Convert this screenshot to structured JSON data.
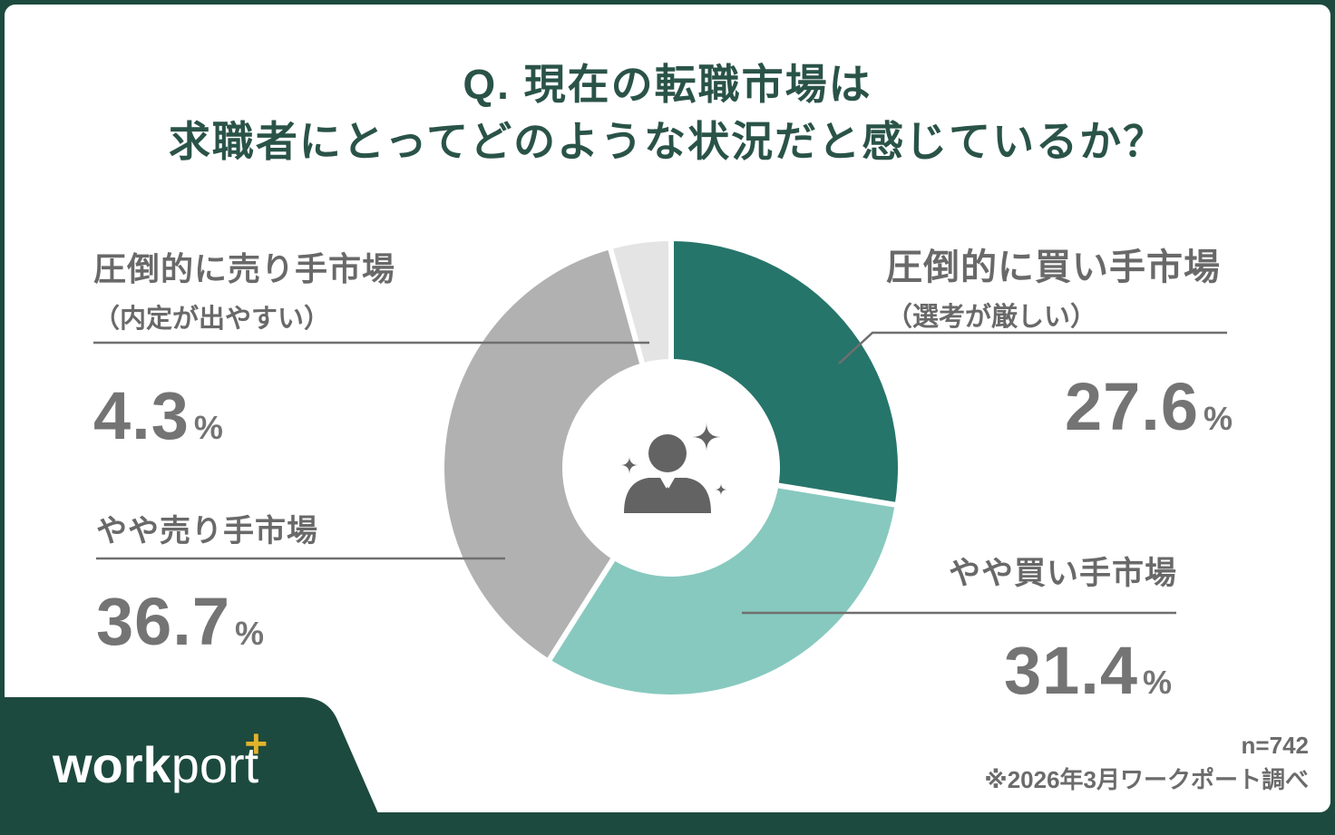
{
  "title": {
    "line1": "Q. 現在の転職市場は",
    "line2": "求職者にとってどのような状況だと感じているか？"
  },
  "chart_data": {
    "type": "pie",
    "subtype": "donut",
    "title": "現在の転職市場は求職者にとってどのような状況だと感じているか？",
    "unit": "%",
    "direction": "clockwise",
    "start_angle_deg": 0,
    "legend_position": "callout-labels",
    "center_icon": "person-sparkle-icon",
    "segments": [
      {
        "label": "圧倒的に買い手市場",
        "sublabel": "（選考が厳しい）",
        "value": 27.6,
        "value_display": "27.6",
        "color": "#26756a"
      },
      {
        "label": "やや買い手市場",
        "sublabel": "",
        "value": 31.4,
        "value_display": "31.4",
        "color": "#87c9bf"
      },
      {
        "label": "やや売り手市場",
        "sublabel": "",
        "value": 36.7,
        "value_display": "36.7",
        "color": "#b1b1b1"
      },
      {
        "label": "圧倒的に売り手市場",
        "sublabel": "（内定が出やすい）",
        "value": 4.3,
        "value_display": "4.3",
        "color": "#e4e4e4"
      }
    ]
  },
  "footer": {
    "sample_size": "n=742",
    "source_note": "※2026年3月ワークポート調べ",
    "logo_text_bold": "work",
    "logo_text_light": "port",
    "logo_plus": "+"
  },
  "colors": {
    "frame_green": "#1d4a3e",
    "title_green": "#2a5348",
    "label_gray": "#696969",
    "number_gray": "#747474",
    "leader_line_gray": "#6f6f6f",
    "icon_gray": "#636363",
    "logo_plus_yellow": "#e2b32b",
    "card_white": "#ffffff"
  }
}
